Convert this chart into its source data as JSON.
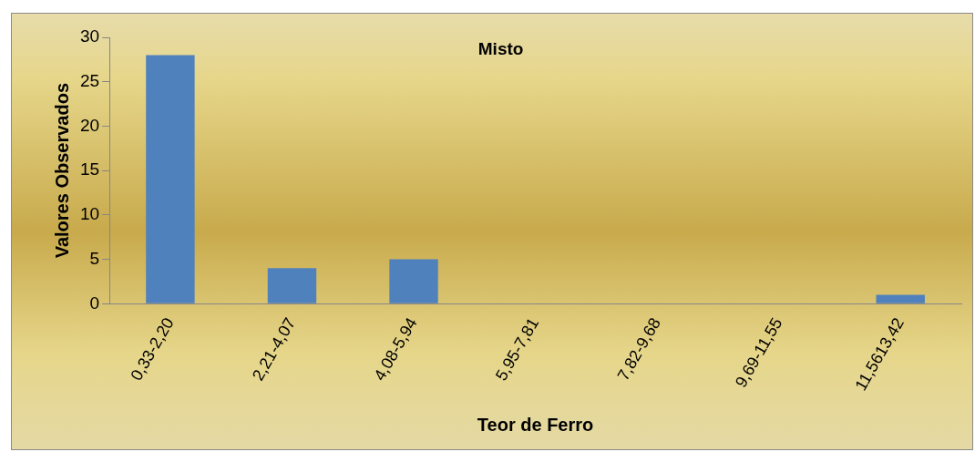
{
  "chart_data": {
    "type": "bar",
    "title": "Misto",
    "xlabel": "Teor de Ferro",
    "ylabel": "Valores Observados",
    "categories": [
      "0,33-2,20",
      "2,21-4,07",
      "4,08-5,94",
      "5,95-7,81",
      "7,82-9,68",
      "9,69-11,55",
      "11,5613,42"
    ],
    "values": [
      28,
      4,
      5,
      0,
      0,
      0,
      1
    ],
    "color": "#4f81bd",
    "ylim": [
      0,
      30
    ],
    "yticks": [
      0,
      5,
      10,
      15,
      20,
      25,
      30
    ],
    "grid": false,
    "legend": false
  }
}
